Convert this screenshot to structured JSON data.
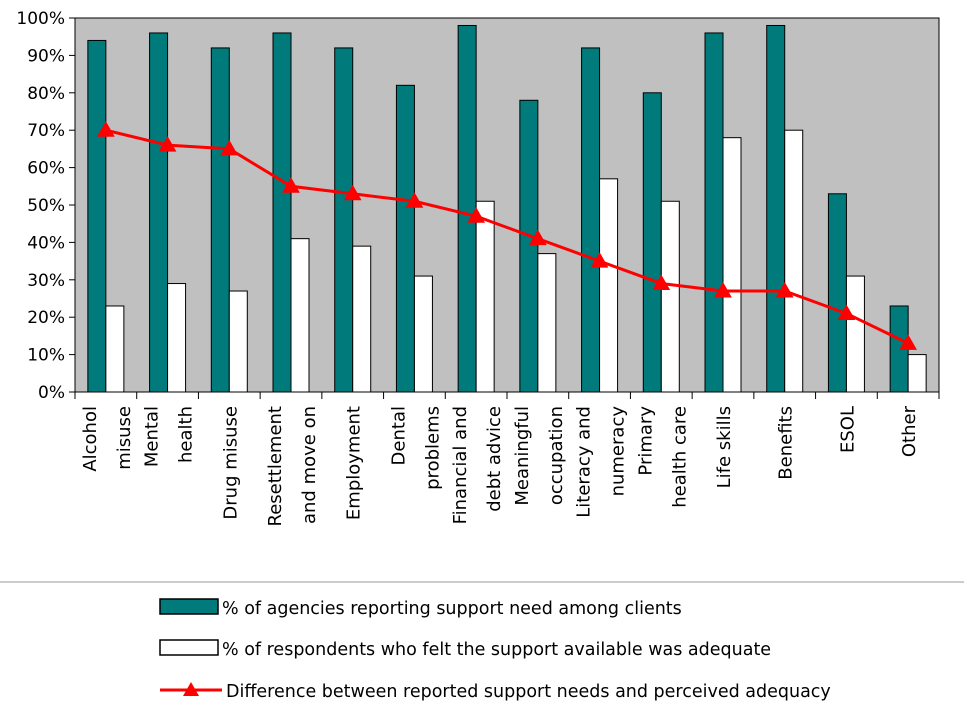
{
  "chart_data": {
    "type": "bar",
    "categories": [
      [
        "Alcohol",
        "misuse"
      ],
      [
        "Mental",
        "health"
      ],
      [
        "Drug misuse"
      ],
      [
        "Resettlement",
        "and move on"
      ],
      [
        "Employment"
      ],
      [
        "Dental",
        "problems"
      ],
      [
        "Financial and",
        "debt advice"
      ],
      [
        "Meaningful",
        "occupation"
      ],
      [
        "Literacy and",
        "numeracy"
      ],
      [
        "Primary",
        "health care"
      ],
      [
        "Life skills"
      ],
      [
        "Benefits"
      ],
      [
        "ESOL"
      ],
      [
        "Other"
      ]
    ],
    "series": [
      {
        "name": "% of agencies reporting support need among clients",
        "type": "bar",
        "color": "#007a7a",
        "values": [
          94,
          96,
          92,
          96,
          92,
          82,
          98,
          78,
          92,
          80,
          96,
          98,
          53,
          23
        ]
      },
      {
        "name": "% of respondents who felt the support available was adequate",
        "type": "bar",
        "color": "#ffffff",
        "values": [
          23,
          29,
          27,
          41,
          39,
          31,
          51,
          37,
          57,
          51,
          68,
          70,
          31,
          10
        ]
      },
      {
        "name": "Difference between reported support needs and perceived adequacy",
        "type": "line",
        "color": "#ff0000",
        "values": [
          70,
          66,
          65,
          55,
          53,
          51,
          47,
          41,
          35,
          29,
          27,
          27,
          21,
          13
        ]
      }
    ],
    "y_ticks": [
      "0%",
      "10%",
      "20%",
      "30%",
      "40%",
      "50%",
      "60%",
      "70%",
      "80%",
      "90%",
      "100%"
    ],
    "ylim": [
      0,
      100
    ],
    "grid": false,
    "plot_background": "#c0c0c0",
    "legend_position": "bottom"
  }
}
